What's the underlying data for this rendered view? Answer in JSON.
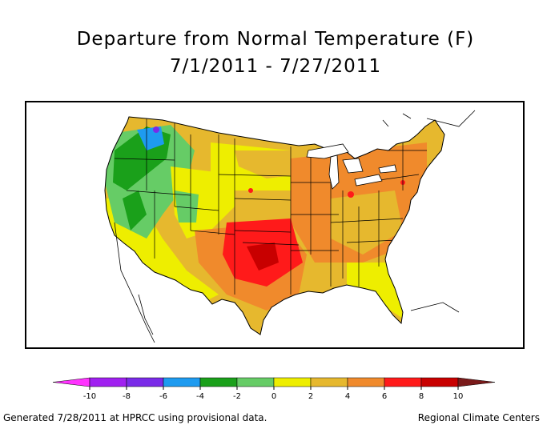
{
  "title_line1": "Departure from Normal Temperature (F)",
  "title_line2": "7/1/2011 - 7/27/2011",
  "footer_left": "Generated 7/28/2011 at HPRCC using provisional data.",
  "footer_right": "Regional Climate Centers",
  "legend": {
    "ticks": [
      "-10",
      "-8",
      "-6",
      "-4",
      "-2",
      "0",
      "2",
      "4",
      "6",
      "8",
      "10"
    ],
    "colors": {
      "below_min": "#ff33ff",
      "bins": [
        "#a020f0",
        "#7a2be8",
        "#1e9bf0",
        "#1aa01a",
        "#66cc66",
        "#eeee00",
        "#e6b82e",
        "#f08a2c",
        "#ff1a1a",
        "#c80000"
      ],
      "above_max": "#7a1a1a"
    }
  },
  "map": {
    "region": "Contiguous United States",
    "variable": "Temperature departure from normal",
    "units": "F",
    "dominant_anomalies": [
      {
        "area": "Northwest",
        "range": "-2 to -6"
      },
      {
        "area": "Southern Plains",
        "range": "6 to 8+"
      },
      {
        "area": "Central and Eastern US",
        "range": "2 to 6"
      }
    ]
  }
}
